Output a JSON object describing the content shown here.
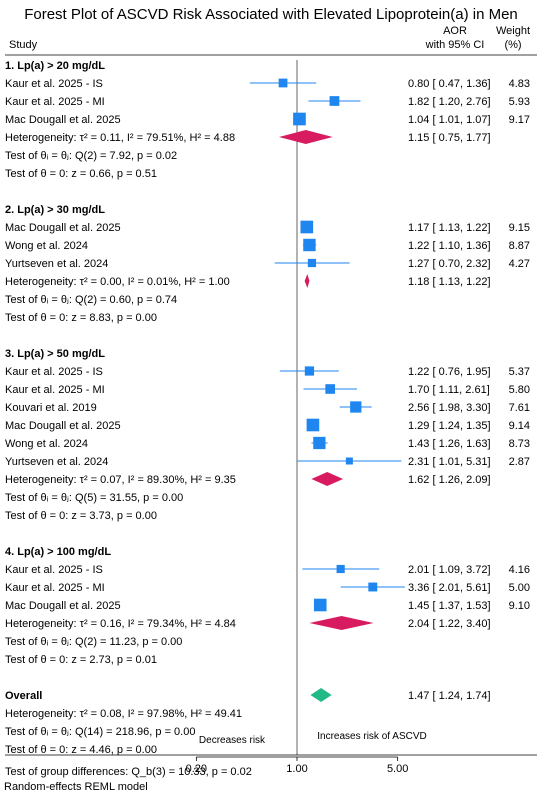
{
  "title": "Forest Plot of ASCVD Risk Associated with Elevated Lipoprotein(a) in Men",
  "headers": {
    "study": "Study",
    "aor_line1": "AOR",
    "aor_line2": "with 95% CI",
    "weight_line1": "Weight",
    "weight_line2": "(%)"
  },
  "footer": {
    "model": "Random-effects REML model",
    "decreases": "Decreases risk",
    "increases": "Increases risk of ASCVD"
  },
  "colors": {
    "study_marker": "#1f86f0",
    "ci_line": "#1f86f0",
    "subgroup_diamond": "#d81b60",
    "overall_diamond": "#20b987",
    "axis": "#000000"
  },
  "chart_data": {
    "type": "forest",
    "x_scale": "log",
    "x_ticks": [
      0.2,
      1.0,
      5.0
    ],
    "x_tick_labels": [
      "0.20",
      "1.00",
      "5.00"
    ],
    "reference_line": 1,
    "groups": [
      {
        "label": "1. Lp(a) > 20 mg/dL",
        "studies": [
          {
            "name": "Kaur et al. 2025 - IS",
            "aor": 0.8,
            "lo": 0.47,
            "hi": 1.36,
            "ci_text": "0.80 [ 0.47, 1.36]",
            "weight": "4.83"
          },
          {
            "name": "Kaur et al. 2025 - MI",
            "aor": 1.82,
            "lo": 1.2,
            "hi": 2.76,
            "ci_text": "1.82 [ 1.20, 2.76]",
            "weight": "5.93"
          },
          {
            "name": "Mac Dougall et al. 2025",
            "aor": 1.04,
            "lo": 1.01,
            "hi": 1.07,
            "ci_text": "1.04 [ 1.01, 1.07]",
            "weight": "9.17"
          }
        ],
        "summary": {
          "aor": 1.15,
          "lo": 0.75,
          "hi": 1.77,
          "ci_text": "1.15 [ 0.75, 1.77]"
        },
        "heterogeneity": "Heterogeneity: τ² = 0.11, I² = 79.51%, H² = 4.88",
        "test_equal": "Test of θᵢ = θⱼ: Q(2) = 7.92, p = 0.02",
        "test_zero": "Test of θ = 0: z = 0.66, p = 0.51"
      },
      {
        "label": "2. Lp(a) > 30 mg/dL",
        "studies": [
          {
            "name": "Mac Dougall et al. 2025",
            "aor": 1.17,
            "lo": 1.13,
            "hi": 1.22,
            "ci_text": "1.17 [ 1.13, 1.22]",
            "weight": "9.15"
          },
          {
            "name": "Wong et al. 2024",
            "aor": 1.22,
            "lo": 1.1,
            "hi": 1.36,
            "ci_text": "1.22 [ 1.10, 1.36]",
            "weight": "8.87"
          },
          {
            "name": "Yurtseven et al. 2024",
            "aor": 1.27,
            "lo": 0.7,
            "hi": 2.32,
            "ci_text": "1.27 [ 0.70, 2.32]",
            "weight": "4.27"
          }
        ],
        "summary": {
          "aor": 1.18,
          "lo": 1.13,
          "hi": 1.22,
          "ci_text": "1.18 [ 1.13, 1.22]"
        },
        "heterogeneity": "Heterogeneity: τ² = 0.00, I² = 0.01%, H² = 1.00",
        "test_equal": "Test of θᵢ = θⱼ: Q(2) = 0.60, p = 0.74",
        "test_zero": "Test of θ = 0: z = 8.83, p = 0.00"
      },
      {
        "label": "3. Lp(a) > 50 mg/dL",
        "studies": [
          {
            "name": "Kaur et al. 2025 - IS",
            "aor": 1.22,
            "lo": 0.76,
            "hi": 1.95,
            "ci_text": "1.22 [ 0.76, 1.95]",
            "weight": "5.37"
          },
          {
            "name": "Kaur et al. 2025 - MI",
            "aor": 1.7,
            "lo": 1.11,
            "hi": 2.61,
            "ci_text": "1.70 [ 1.11, 2.61]",
            "weight": "5.80"
          },
          {
            "name": "Kouvari et al. 2019",
            "aor": 2.56,
            "lo": 1.98,
            "hi": 3.3,
            "ci_text": "2.56 [ 1.98, 3.30]",
            "weight": "7.61"
          },
          {
            "name": "Mac Dougall et al. 2025",
            "aor": 1.29,
            "lo": 1.24,
            "hi": 1.35,
            "ci_text": "1.29 [ 1.24, 1.35]",
            "weight": "9.14"
          },
          {
            "name": "Wong et al. 2024",
            "aor": 1.43,
            "lo": 1.26,
            "hi": 1.63,
            "ci_text": "1.43 [ 1.26, 1.63]",
            "weight": "8.73"
          },
          {
            "name": "Yurtseven et al. 2024",
            "aor": 2.31,
            "lo": 1.01,
            "hi": 5.31,
            "ci_text": "2.31 [ 1.01, 5.31]",
            "weight": "2.87"
          }
        ],
        "summary": {
          "aor": 1.62,
          "lo": 1.26,
          "hi": 2.09,
          "ci_text": "1.62 [ 1.26, 2.09]"
        },
        "heterogeneity": "Heterogeneity: τ² = 0.07, I² = 89.30%, H² = 9.35",
        "test_equal": "Test of θᵢ = θⱼ: Q(5) = 31.55, p = 0.00",
        "test_zero": "Test of θ = 0: z = 3.73, p = 0.00"
      },
      {
        "label": "4. Lp(a) > 100 mg/dL",
        "studies": [
          {
            "name": "Kaur et al. 2025 - IS",
            "aor": 2.01,
            "lo": 1.09,
            "hi": 3.72,
            "ci_text": "2.01 [ 1.09, 3.72]",
            "weight": "4.16"
          },
          {
            "name": "Kaur et al. 2025 - MI",
            "aor": 3.36,
            "lo": 2.01,
            "hi": 5.61,
            "ci_text": "3.36 [ 2.01, 5.61]",
            "weight": "5.00"
          },
          {
            "name": "Mac Dougall et al. 2025",
            "aor": 1.45,
            "lo": 1.37,
            "hi": 1.53,
            "ci_text": "1.45 [ 1.37, 1.53]",
            "weight": "9.10"
          }
        ],
        "summary": {
          "aor": 2.04,
          "lo": 1.22,
          "hi": 3.4,
          "ci_text": "2.04 [ 1.22, 3.40]"
        },
        "heterogeneity": "Heterogeneity: τ² = 0.16, I² = 79.34%, H² = 4.84",
        "test_equal": "Test of θᵢ = θⱼ: Q(2) = 11.23, p = 0.00",
        "test_zero": "Test of θ = 0: z = 2.73, p = 0.01"
      }
    ],
    "overall": {
      "label": "Overall",
      "aor": 1.47,
      "lo": 1.24,
      "hi": 1.74,
      "ci_text": "1.47 [ 1.24, 1.74]",
      "heterogeneity": "Heterogeneity: τ² = 0.08, I² = 97.98%, H² = 49.41",
      "test_equal": "Test of θᵢ = θⱼ: Q(14) = 218.96, p = 0.00",
      "test_zero": "Test of θ = 0: z = 4.46, p = 0.00"
    },
    "group_differences": "Test of group differences: Q_b(3) = 10.33, p = 0.02"
  }
}
